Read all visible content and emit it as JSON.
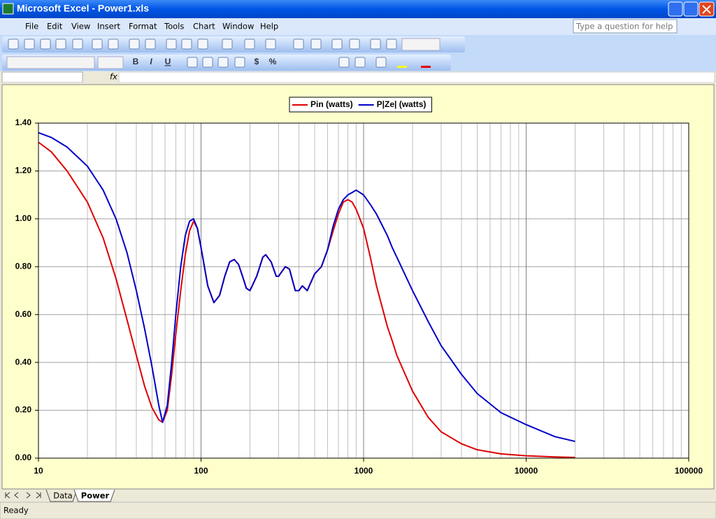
{
  "window": {
    "title": "Microsoft Excel - Power1.xls"
  },
  "menu": [
    "File",
    "Edit",
    "View",
    "Insert",
    "Format",
    "Tools",
    "Chart",
    "Window",
    "Help"
  ],
  "help_box": "Type a question for help",
  "format_buttons": [
    "B",
    "I",
    "U",
    "$",
    "%"
  ],
  "formula_bar": {
    "fx": "fx"
  },
  "sheet_tabs": [
    "Data",
    "Power"
  ],
  "status": "Ready",
  "chart_data": {
    "type": "line",
    "x": [
      10,
      12,
      15,
      20,
      25,
      30,
      35,
      40,
      45,
      50,
      55,
      58,
      62,
      66,
      70,
      75,
      80,
      85,
      90,
      95,
      100,
      110,
      120,
      130,
      140,
      150,
      160,
      170,
      180,
      190,
      200,
      220,
      240,
      250,
      270,
      290,
      300,
      330,
      350,
      380,
      400,
      420,
      450,
      500,
      550,
      600,
      650,
      700,
      750,
      800,
      850,
      900,
      1000,
      1100,
      1200,
      1400,
      1500,
      1600,
      2000,
      2500,
      3000,
      4000,
      5000,
      7000,
      10000,
      15000,
      20000
    ],
    "series": [
      {
        "name": "Pin (watts)",
        "color": "#e00000",
        "values": [
          1.32,
          1.28,
          1.2,
          1.07,
          0.92,
          0.75,
          0.58,
          0.43,
          0.3,
          0.21,
          0.16,
          0.15,
          0.2,
          0.35,
          0.52,
          0.7,
          0.85,
          0.95,
          0.99,
          0.96,
          0.88,
          0.72,
          0.65,
          0.68,
          0.76,
          0.82,
          0.83,
          0.81,
          0.76,
          0.71,
          0.7,
          0.76,
          0.84,
          0.85,
          0.82,
          0.76,
          0.76,
          0.8,
          0.79,
          0.7,
          0.7,
          0.72,
          0.7,
          0.77,
          0.8,
          0.87,
          0.95,
          1.02,
          1.07,
          1.08,
          1.07,
          1.04,
          0.96,
          0.84,
          0.72,
          0.55,
          0.49,
          0.43,
          0.28,
          0.17,
          0.11,
          0.06,
          0.035,
          0.018,
          0.01,
          0.005,
          0.003
        ]
      },
      {
        "name": "P|Ze| (watts)",
        "color": "#0000c8",
        "values": [
          1.36,
          1.34,
          1.3,
          1.22,
          1.12,
          1.0,
          0.86,
          0.7,
          0.54,
          0.38,
          0.22,
          0.15,
          0.22,
          0.4,
          0.6,
          0.8,
          0.93,
          0.99,
          1.0,
          0.96,
          0.88,
          0.72,
          0.65,
          0.68,
          0.76,
          0.82,
          0.83,
          0.81,
          0.76,
          0.71,
          0.7,
          0.76,
          0.84,
          0.85,
          0.82,
          0.76,
          0.76,
          0.8,
          0.79,
          0.7,
          0.7,
          0.72,
          0.7,
          0.77,
          0.8,
          0.87,
          0.97,
          1.04,
          1.08,
          1.1,
          1.11,
          1.12,
          1.1,
          1.06,
          1.02,
          0.93,
          0.88,
          0.84,
          0.7,
          0.57,
          0.47,
          0.35,
          0.27,
          0.19,
          0.14,
          0.09,
          0.07
        ]
      }
    ],
    "xlim": [
      10,
      100000
    ],
    "xticks": [
      10,
      100,
      1000,
      10000,
      100000
    ],
    "xscale": "log",
    "ylim": [
      0,
      1.4
    ],
    "yticks": [
      {
        "value": 0,
        "label": "0.00"
      },
      {
        "value": 0.2,
        "label": "0.20"
      },
      {
        "value": 0.4,
        "label": "0.40"
      },
      {
        "value": 0.6,
        "label": "0.60"
      },
      {
        "value": 0.8,
        "label": "0.80"
      },
      {
        "value": 1.0,
        "label": "1.00"
      },
      {
        "value": 1.2,
        "label": "1.20"
      },
      {
        "value": 1.4,
        "label": "1.40"
      }
    ],
    "grid": true,
    "minor_grid": true,
    "legend": "top"
  }
}
